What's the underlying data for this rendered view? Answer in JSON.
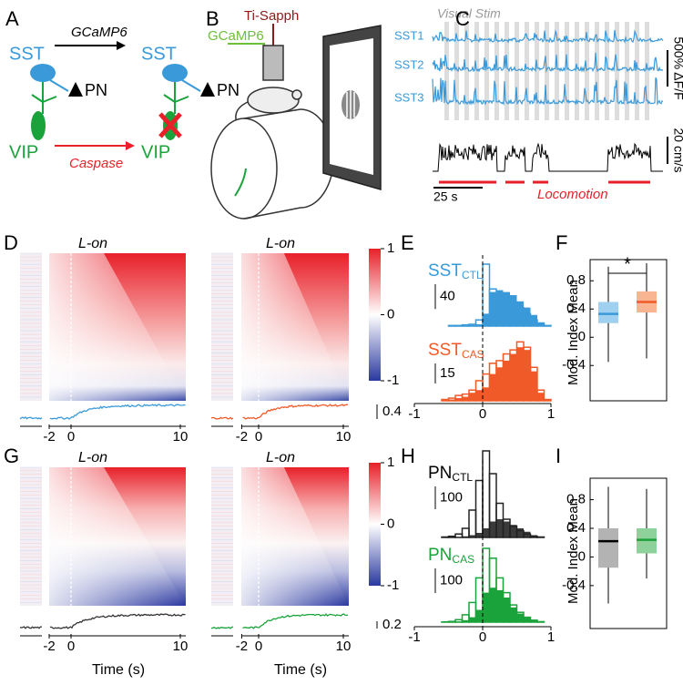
{
  "panel_labels": [
    "A",
    "B",
    "C",
    "D",
    "E",
    "F",
    "G",
    "H",
    "I"
  ],
  "panel_a": {
    "top_arrow": "GCaMP6",
    "sst_left": "SST",
    "sst_right": "SST",
    "pn_left": "PN",
    "pn_right": "PN",
    "vip_left": "VIP",
    "vip_right": "VIP",
    "bottom_arrow": "Caspase"
  },
  "panel_b": {
    "laser": "Ti-Sapph",
    "indicator": "GCaMP6"
  },
  "panel_c": {
    "stim_label": "Visual Stim",
    "cells": [
      "SST1",
      "SST2",
      "SST3"
    ],
    "df_scale": "500% ΔF/F",
    "speed_scale": "20 cm/s",
    "time_scale": "25 s",
    "locomotion": "Locomotion"
  },
  "panel_d": {
    "titles": [
      "L-on",
      "L-on"
    ],
    "xticks": [
      -2,
      0,
      10
    ],
    "colorbar_ticks": [
      1,
      0,
      -1
    ],
    "trace_scale": 0.4
  },
  "panel_e": {
    "bins": [
      -1,
      -0.9,
      -0.8,
      -0.7,
      -0.6,
      -0.5,
      -0.4,
      -0.3,
      -0.2,
      -0.1,
      0,
      0.1,
      0.2,
      0.3,
      0.4,
      0.5,
      0.6,
      0.7,
      0.8,
      0.9,
      1
    ],
    "xticks": [
      -1,
      0,
      1
    ],
    "ctl": {
      "label": "SST",
      "subscript": "CTL",
      "scale": 40,
      "outline": [
        0,
        0,
        0,
        0,
        0,
        1,
        1,
        2,
        3,
        10,
        100,
        60,
        45,
        40,
        35,
        30,
        20,
        10,
        5,
        1
      ],
      "filled": [
        0,
        0,
        0,
        0,
        0,
        1,
        1,
        1,
        2,
        3,
        20,
        55,
        58,
        55,
        50,
        40,
        30,
        18,
        6,
        1
      ]
    },
    "cas": {
      "label": "SST",
      "subscript": "CAS",
      "scale": 15,
      "outline": [
        0,
        0,
        0,
        0,
        1,
        2,
        4,
        5,
        8,
        15,
        20,
        28,
        30,
        35,
        38,
        44,
        40,
        25,
        8,
        1
      ],
      "filled": [
        0,
        0,
        0,
        0,
        1,
        1,
        2,
        3,
        6,
        8,
        10,
        20,
        25,
        30,
        35,
        40,
        38,
        22,
        6,
        1
      ]
    }
  },
  "panel_f": {
    "ylabel": "Mod. Index Mean",
    "ylim": [
      -0.9,
      1.1
    ],
    "yticks": [
      0.8,
      0.4,
      0,
      -0.4
    ],
    "significance": "*",
    "boxes": [
      {
        "color": "#9fd0f0",
        "median_color": "#3a9ad9",
        "whisker_low": -0.35,
        "q1": 0.2,
        "median": 0.33,
        "q3": 0.5,
        "whisker_high": 1.0
      },
      {
        "color": "#f9b592",
        "median_color": "#f05a28",
        "whisker_low": -0.3,
        "q1": 0.35,
        "median": 0.5,
        "q3": 0.65,
        "whisker_high": 1.05
      }
    ]
  },
  "panel_g": {
    "titles": [
      "L-on",
      "L-on"
    ],
    "xticks": [
      -2,
      0,
      10
    ],
    "colorbar_ticks": [
      1,
      0,
      -1
    ],
    "trace_scale": 0.2,
    "xlabels": [
      "Time (s)",
      "Time (s)"
    ]
  },
  "panel_h": {
    "bins": [
      -1,
      -0.9,
      -0.8,
      -0.7,
      -0.6,
      -0.5,
      -0.4,
      -0.3,
      -0.2,
      -0.1,
      0,
      0.1,
      0.2,
      0.3,
      0.4,
      0.5,
      0.6,
      0.7,
      0.8,
      0.9,
      1
    ],
    "xticks": [
      -1,
      0,
      1
    ],
    "ctl": {
      "label": "PN",
      "subscript": "CTL",
      "scale": 100,
      "outline": [
        0,
        0,
        0,
        0,
        2,
        5,
        15,
        40,
        120,
        250,
        380,
        280,
        150,
        80,
        50,
        30,
        15,
        5,
        2,
        0
      ],
      "filled": [
        0,
        0,
        0,
        0,
        0,
        1,
        2,
        5,
        10,
        20,
        40,
        70,
        80,
        70,
        55,
        40,
        25,
        10,
        3,
        0
      ]
    },
    "cas": {
      "label": "PN",
      "subscript": "CAS",
      "scale": 100,
      "outline": [
        0,
        0,
        0,
        0,
        1,
        3,
        10,
        30,
        80,
        180,
        300,
        260,
        180,
        120,
        70,
        40,
        20,
        8,
        2,
        0
      ],
      "filled": [
        0,
        0,
        0,
        0,
        0,
        1,
        3,
        8,
        20,
        50,
        120,
        140,
        130,
        100,
        60,
        35,
        18,
        6,
        2,
        0
      ]
    }
  },
  "panel_i": {
    "ylabel": "Mod. Index Mean",
    "ylim": [
      -1,
      1.1
    ],
    "yticks": [
      0.8,
      0.4,
      0,
      -0.4
    ],
    "boxes": [
      {
        "color": "#b3b3b3",
        "median_color": "#000000",
        "whisker_low": -0.65,
        "q1": -0.15,
        "median": 0.22,
        "q3": 0.4,
        "whisker_high": 0.98
      },
      {
        "color": "#8fd19a",
        "median_color": "#1aa33a",
        "whisker_low": -0.3,
        "q1": 0.05,
        "median": 0.24,
        "q3": 0.4,
        "whisker_high": 0.95
      }
    ]
  }
}
